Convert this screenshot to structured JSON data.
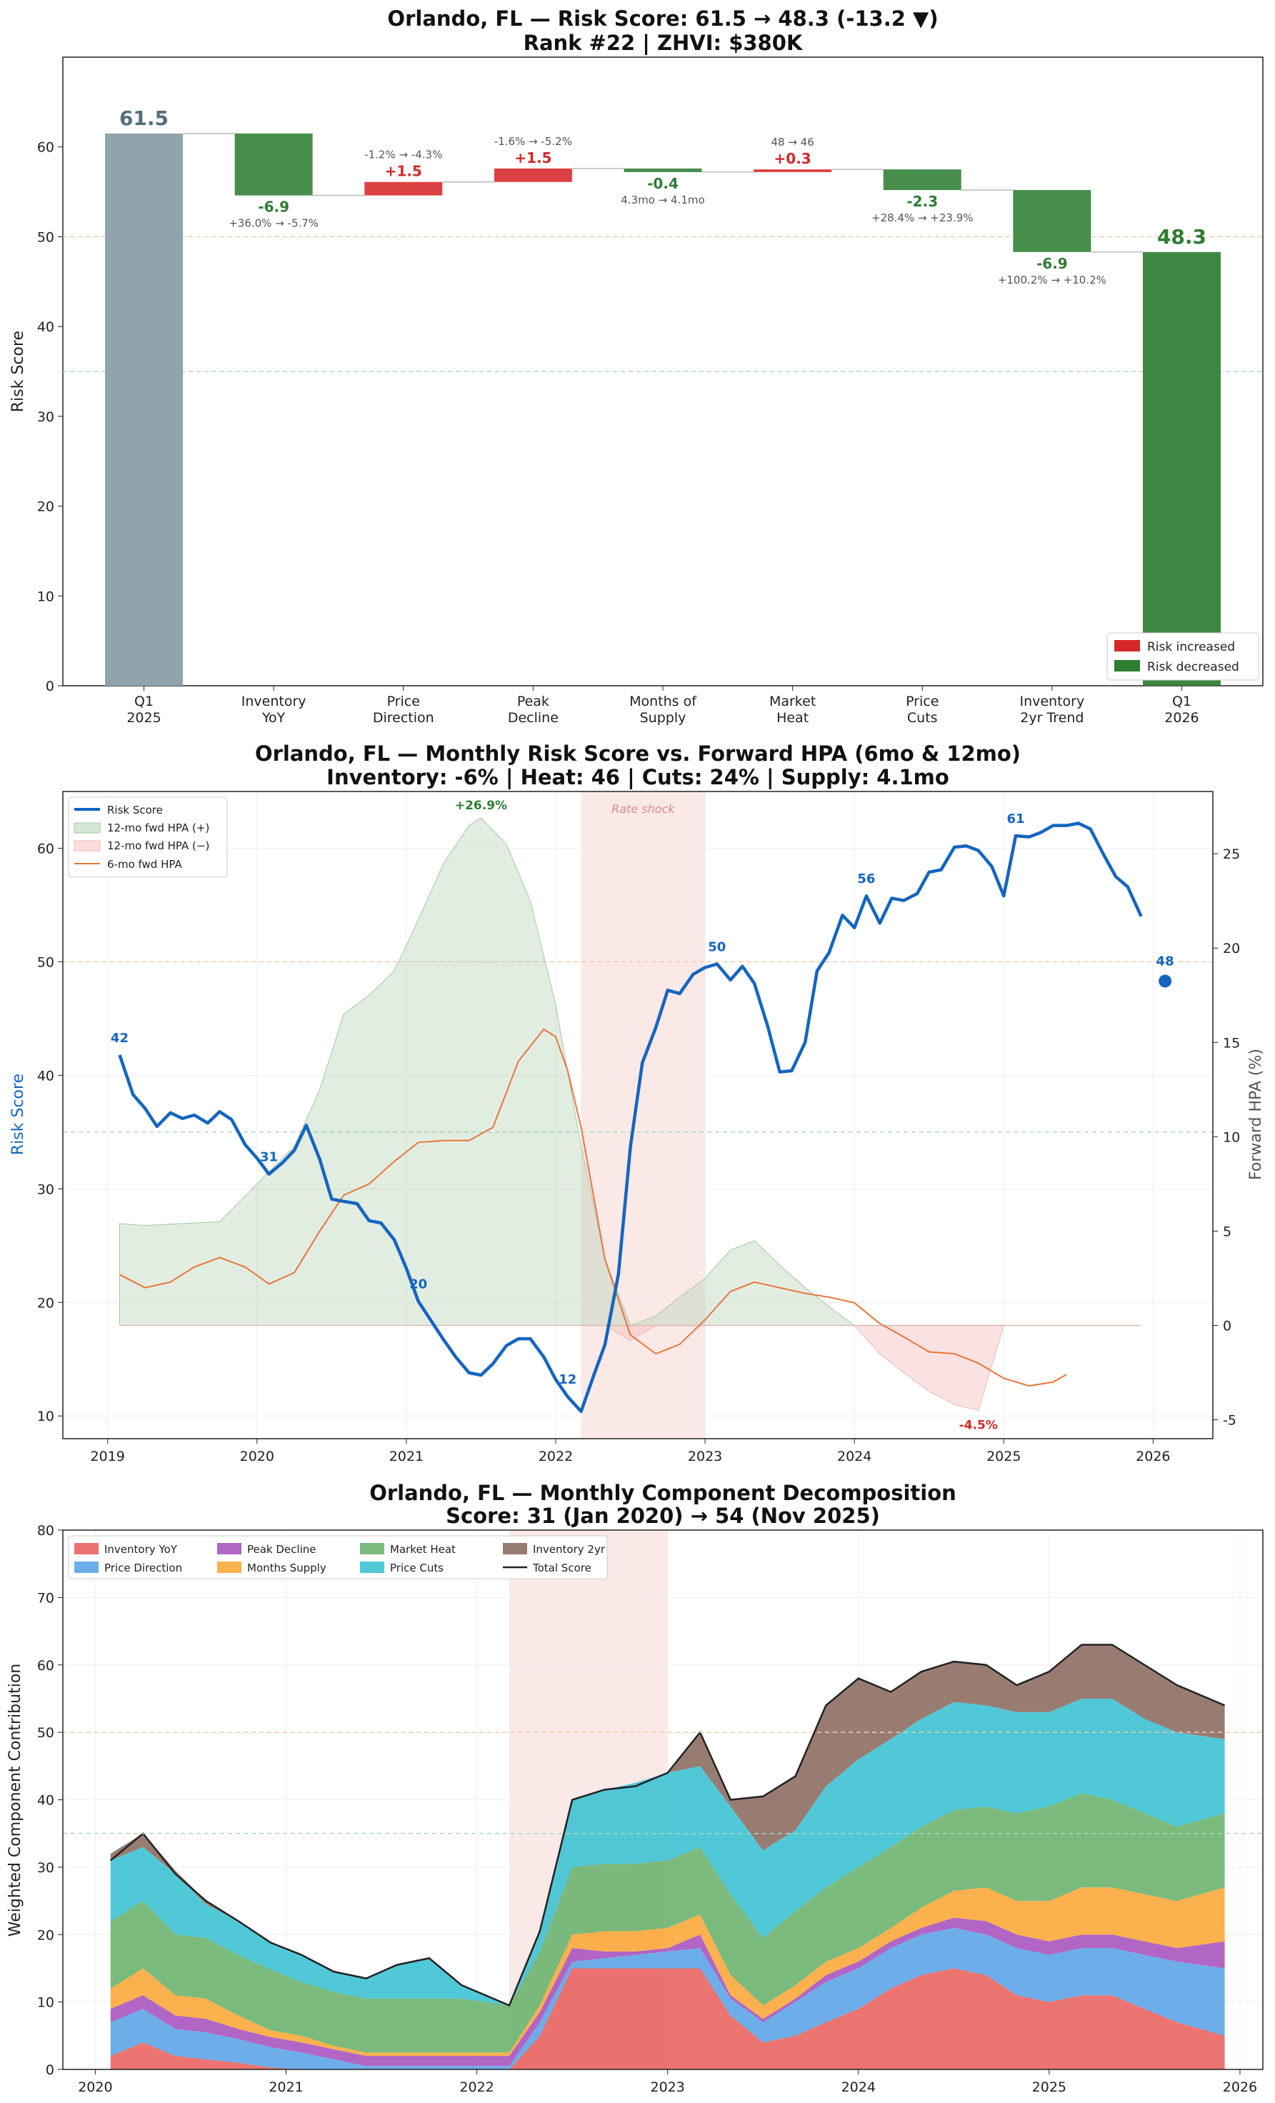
{
  "colors": {
    "increase": "#d62728",
    "decrease": "#2e7d32",
    "start_bar": "#90a4ae",
    "risk_line": "#1565c0",
    "hpa6": "#e8763a",
    "hpa_pos": "#a5c8a5",
    "hpa_neg": "#f4b6b6",
    "shock": "#f6d4d0",
    "ref_orange": "#f5cba7",
    "ref_green": "#a9d8c4"
  },
  "chart_data": [
    {
      "type": "bar",
      "subtype": "waterfall",
      "title": "Orlando, FL — Risk Score: 61.5 → 48.3 (-13.2 ▼)",
      "subtitle": "Rank #22  |  ZHVI: $380K",
      "ylabel": "Risk Score",
      "ylim": [
        0,
        70
      ],
      "yticks": [
        0,
        10,
        20,
        30,
        40,
        50,
        60
      ],
      "reference_lines": [
        50,
        35
      ],
      "legend": {
        "position": "bottom-right",
        "entries": [
          "Risk increased",
          "Risk decreased"
        ]
      },
      "start": {
        "label": [
          "Q1",
          "2025"
        ],
        "value": 61.5,
        "text": "61.5"
      },
      "end": {
        "label": [
          "Q1",
          "2026"
        ],
        "value": 48.3,
        "text": "48.3"
      },
      "steps": [
        {
          "label": [
            "Inventory",
            "YoY"
          ],
          "delta": -6.9,
          "text": "-6.9",
          "note": "+36.0% → -5.7%"
        },
        {
          "label": [
            "Price",
            "Direction"
          ],
          "delta": 1.5,
          "text": "+1.5",
          "note": "-1.2% → -4.3%"
        },
        {
          "label": [
            "Peak",
            "Decline"
          ],
          "delta": 1.5,
          "text": "+1.5",
          "note": "-1.6% → -5.2%"
        },
        {
          "label": [
            "Months of",
            "Supply"
          ],
          "delta": -0.4,
          "text": "-0.4",
          "note": "4.3mo → 4.1mo"
        },
        {
          "label": [
            "Market",
            "Heat"
          ],
          "delta": 0.3,
          "text": "+0.3",
          "note": "48 → 46"
        },
        {
          "label": [
            "Price",
            "Cuts"
          ],
          "delta": -2.3,
          "text": "-2.3",
          "note": "+28.4% → +23.9%"
        },
        {
          "label": [
            "Inventory",
            "2yr Trend"
          ],
          "delta": -6.9,
          "text": "-6.9",
          "note": "+100.2% → +10.2%"
        }
      ]
    },
    {
      "type": "line",
      "title": "Orlando, FL — Monthly Risk Score vs. Forward HPA (6mo & 12mo)",
      "subtitle": "Inventory: -6%  |  Heat: 46  |  Cuts: 24%  |  Supply: 4.1mo",
      "ylabel": "Risk Score",
      "y2label": "Forward HPA (%)",
      "xlim": [
        2018.7,
        2026.4
      ],
      "ylim": [
        8,
        65
      ],
      "y2lim": [
        -6,
        28.3
      ],
      "xticks": [
        2019,
        2020,
        2021,
        2022,
        2023,
        2024,
        2025,
        2026
      ],
      "yticks": [
        10,
        20,
        30,
        40,
        50,
        60
      ],
      "y2ticks": [
        -5,
        0,
        5,
        10,
        15,
        20,
        25
      ],
      "reference_lines": [
        50,
        35
      ],
      "shaded_region": {
        "x": [
          2022.17,
          2023.0
        ],
        "label": "Rate shock"
      },
      "legend": {
        "position": "top-left",
        "entries": [
          "Risk Score",
          "12-mo fwd HPA (+)",
          "12-mo fwd HPA (−)",
          "6-mo fwd HPA"
        ]
      },
      "series": [
        {
          "name": "Risk Score",
          "axis": "left",
          "x": [
            2019.08,
            2019.17,
            2019.25,
            2019.33,
            2019.42,
            2019.5,
            2019.58,
            2019.67,
            2019.75,
            2019.83,
            2019.92,
            2020.0,
            2020.08,
            2020.17,
            2020.25,
            2020.33,
            2020.42,
            2020.5,
            2020.58,
            2020.67,
            2020.75,
            2020.83,
            2020.92,
            2021.0,
            2021.08,
            2021.17,
            2021.25,
            2021.33,
            2021.42,
            2021.5,
            2021.58,
            2021.67,
            2021.75,
            2021.83,
            2021.92,
            2022.0,
            2022.08,
            2022.17,
            2022.25,
            2022.33,
            2022.42,
            2022.5,
            2022.58,
            2022.67,
            2022.75,
            2022.83,
            2022.92,
            2023.0,
            2023.08,
            2023.17,
            2023.25,
            2023.33,
            2023.42,
            2023.5,
            2023.58,
            2023.67,
            2023.75,
            2023.83,
            2023.92,
            2024.0,
            2024.08,
            2024.17,
            2024.25,
            2024.33,
            2024.42,
            2024.5,
            2024.58,
            2024.67,
            2024.75,
            2024.83,
            2024.92,
            2025.0,
            2025.08,
            2025.17,
            2025.25,
            2025.33,
            2025.42,
            2025.5,
            2025.58,
            2025.67,
            2025.75,
            2025.83,
            2025.92
          ],
          "y": [
            41.8,
            38.3,
            37.1,
            35.5,
            36.7,
            36.2,
            36.5,
            35.8,
            36.8,
            36.1,
            33.9,
            32.7,
            31.3,
            32.3,
            33.4,
            35.6,
            32.6,
            29.1,
            28.9,
            28.7,
            27.2,
            27.0,
            25.5,
            23.0,
            20.1,
            18.3,
            16.7,
            15.2,
            13.8,
            13.6,
            14.6,
            16.2,
            16.8,
            16.8,
            15.2,
            13.2,
            11.7,
            10.4,
            13.4,
            16.3,
            22.5,
            33.7,
            41.1,
            44.2,
            47.5,
            47.2,
            48.9,
            49.5,
            49.8,
            48.4,
            49.6,
            48.1,
            44.3,
            40.3,
            40.4,
            42.9,
            49.2,
            50.8,
            54.1,
            53.0,
            55.8,
            53.4,
            55.6,
            55.4,
            56.0,
            57.9,
            58.1,
            60.1,
            60.2,
            59.8,
            58.4,
            55.8,
            61.1,
            61.0,
            61.4,
            62.0,
            62.0,
            62.2,
            61.7,
            59.4,
            57.5,
            56.6,
            54.0
          ],
          "labels": [
            {
              "x": 2019.08,
              "y": 41.8,
              "text": "42"
            },
            {
              "x": 2020.08,
              "y": 31.3,
              "text": "31"
            },
            {
              "x": 2021.08,
              "y": 20.1,
              "text": "20"
            },
            {
              "x": 2022.08,
              "y": 11.7,
              "text": "12"
            },
            {
              "x": 2023.08,
              "y": 49.8,
              "text": "50"
            },
            {
              "x": 2024.08,
              "y": 55.8,
              "text": "56"
            },
            {
              "x": 2025.08,
              "y": 61.1,
              "text": "61"
            }
          ],
          "final_point": {
            "x": 2026.08,
            "y": 48.3,
            "text": "48"
          }
        },
        {
          "name": "12-mo fwd HPA",
          "axis": "right",
          "x": [
            2019.08,
            2019.25,
            2019.5,
            2019.75,
            2020.0,
            2020.25,
            2020.42,
            2020.58,
            2020.75,
            2020.92,
            2021.08,
            2021.25,
            2021.42,
            2021.5,
            2021.67,
            2021.83,
            2022.0,
            2022.17,
            2022.33,
            2022.5,
            2022.67,
            2022.83,
            2023.0,
            2023.17,
            2023.33,
            2023.5,
            2023.67,
            2023.83,
            2024.0,
            2024.17,
            2024.33,
            2024.5,
            2024.67,
            2024.83,
            2025.0,
            2025.08,
            2025.5,
            2025.92
          ],
          "y": [
            5.4,
            5.3,
            5.4,
            5.5,
            7.5,
            9.5,
            12.5,
            16.5,
            17.5,
            18.8,
            21.5,
            24.5,
            26.5,
            26.9,
            25.5,
            22.5,
            17.0,
            9.5,
            3.5,
            -0.8,
            0.5,
            1.5,
            2.5,
            4.0,
            4.5,
            3.2,
            2.0,
            1.0,
            0.0,
            -1.5,
            -2.5,
            -3.5,
            -4.2,
            -4.5,
            0.0,
            0.0,
            0.0,
            0.0
          ],
          "labels": [
            {
              "x": 2021.5,
              "y": 26.9,
              "text": "+26.9%"
            },
            {
              "x": 2024.83,
              "y": -4.5,
              "text": "-4.5%"
            }
          ]
        },
        {
          "name": "6-mo fwd HPA",
          "axis": "right",
          "x": [
            2019.08,
            2019.25,
            2019.42,
            2019.58,
            2019.75,
            2019.92,
            2020.08,
            2020.25,
            2020.42,
            2020.58,
            2020.75,
            2020.92,
            2021.08,
            2021.25,
            2021.42,
            2021.58,
            2021.75,
            2021.92,
            2022.0,
            2022.08,
            2022.17,
            2022.33,
            2022.5,
            2022.67,
            2022.83,
            2023.0,
            2023.17,
            2023.33,
            2023.5,
            2023.67,
            2023.83,
            2024.0,
            2024.17,
            2024.33,
            2024.5,
            2024.67,
            2024.83,
            2025.0,
            2025.17,
            2025.33,
            2025.42
          ],
          "y": [
            2.7,
            2.0,
            2.3,
            3.1,
            3.6,
            3.1,
            2.2,
            2.8,
            5.0,
            6.9,
            7.5,
            8.7,
            9.7,
            9.8,
            9.8,
            10.5,
            14.0,
            15.7,
            15.3,
            13.5,
            10.5,
            3.5,
            -0.5,
            -1.5,
            -1.0,
            0.3,
            1.8,
            2.3,
            2.0,
            1.7,
            1.5,
            1.2,
            0.1,
            -0.6,
            -1.4,
            -1.5,
            -2.0,
            -2.8,
            -3.2,
            -3.0,
            -2.6
          ]
        }
      ]
    },
    {
      "type": "area",
      "stacked": true,
      "title": "Orlando, FL — Monthly Component Decomposition",
      "subtitle": "Score: 31 (Jan 2020) → 54 (Nov 2025)",
      "ylabel": "Weighted Component Contribution",
      "xlim": [
        2019.83,
        2026.12
      ],
      "ylim": [
        0,
        80
      ],
      "xticks": [
        2020,
        2021,
        2022,
        2023,
        2024,
        2025,
        2026
      ],
      "yticks": [
        0,
        10,
        20,
        30,
        40,
        50,
        60,
        70,
        80
      ],
      "reference_lines": [
        50,
        35
      ],
      "shaded_region": {
        "x": [
          2022.17,
          2023.0
        ]
      },
      "legend": {
        "position": "top-left",
        "entries": [
          "Inventory YoY",
          "Price Direction",
          "Peak Decline",
          "Months Supply",
          "Market Heat",
          "Price Cuts",
          "Inventory 2yr",
          "Total Score"
        ]
      },
      "x": [
        2020.08,
        2020.25,
        2020.42,
        2020.58,
        2020.75,
        2020.92,
        2021.08,
        2021.25,
        2021.42,
        2021.58,
        2021.75,
        2021.92,
        2022.17,
        2022.33,
        2022.5,
        2022.67,
        2022.83,
        2023.0,
        2023.17,
        2023.33,
        2023.5,
        2023.67,
        2023.83,
        2024.0,
        2024.17,
        2024.33,
        2024.5,
        2024.67,
        2024.83,
        2025.0,
        2025.17,
        2025.33,
        2025.5,
        2025.67,
        2025.92
      ],
      "series": [
        {
          "name": "Inventory YoY",
          "color": "#e96461",
          "values": [
            2,
            4,
            2,
            1.5,
            1,
            0.3,
            0,
            0,
            0,
            0,
            0,
            0,
            0,
            5,
            15,
            15,
            15,
            15,
            15,
            8,
            4,
            5,
            7,
            9,
            12,
            14,
            15,
            14,
            11,
            10,
            11,
            11,
            9,
            7,
            5
          ]
        },
        {
          "name": "Price Direction",
          "color": "#5da5e8",
          "values": [
            5,
            5,
            4,
            4,
            3.5,
            3,
            2.5,
            1.5,
            0.5,
            0.5,
            0.5,
            0.5,
            0.5,
            2,
            1,
            1.5,
            2,
            2.5,
            3,
            2.5,
            3,
            5,
            6,
            6,
            6,
            6,
            6,
            6,
            7,
            7,
            7,
            7,
            8,
            9,
            10
          ]
        },
        {
          "name": "Peak Decline",
          "color": "#a855bf",
          "values": [
            2,
            2,
            2,
            2,
            1.5,
            1.5,
            1.5,
            1.5,
            1.5,
            1.5,
            1.5,
            1.5,
            1.5,
            1.5,
            2,
            1,
            0.5,
            0.5,
            2,
            0.5,
            0.5,
            0.5,
            1,
            1,
            1,
            1,
            1.5,
            2,
            2,
            2,
            2,
            2,
            2,
            2,
            4
          ]
        },
        {
          "name": "Months Supply",
          "color": "#f9a93b",
          "values": [
            3,
            4,
            3,
            3,
            2,
            1,
            1,
            0.5,
            0.5,
            0.5,
            0.5,
            0.5,
            0.5,
            1,
            2,
            3,
            3,
            3,
            3,
            3,
            2,
            2,
            2,
            2,
            2,
            3,
            4,
            5,
            5,
            6,
            7,
            7,
            7,
            7,
            8
          ]
        },
        {
          "name": "Market Heat",
          "color": "#6bb36f",
          "values": [
            10,
            10,
            9,
            9,
            9,
            9,
            8,
            8,
            8,
            8,
            8,
            8,
            7,
            8,
            10,
            10,
            10,
            10,
            10,
            12,
            10,
            11,
            11,
            12,
            12,
            12,
            12,
            12,
            13,
            14,
            14,
            13,
            12,
            11,
            11
          ]
        },
        {
          "name": "Price Cuts",
          "color": "#3ec2d3",
          "values": [
            9,
            8,
            9,
            5,
            5,
            4,
            4,
            3,
            3,
            5,
            6,
            2,
            0,
            3,
            10,
            11,
            12,
            13,
            12,
            13,
            13,
            12,
            15,
            16,
            16,
            16,
            16,
            15,
            15,
            14,
            14,
            15,
            14,
            14,
            11
          ]
        },
        {
          "name": "Inventory 2yr",
          "color": "#8d6e63",
          "values": [
            1,
            2,
            0.5,
            0.5,
            0,
            0,
            0,
            0,
            0,
            0,
            0,
            0,
            0,
            0,
            0,
            0,
            0,
            0,
            5,
            1,
            8,
            8,
            12,
            12,
            7,
            7,
            6,
            6,
            4,
            6,
            8,
            8,
            8,
            7,
            5
          ]
        }
      ],
      "total": {
        "name": "Total Score",
        "color": "#222222",
        "values": [
          31,
          35,
          29,
          25,
          22,
          18.8,
          17,
          14.5,
          13.5,
          15.5,
          16.5,
          12.5,
          9.5,
          20.5,
          40,
          41.5,
          42,
          44,
          50,
          40,
          40.5,
          43.5,
          54,
          58,
          56,
          59,
          60.5,
          60,
          57,
          59,
          63,
          63,
          60,
          57,
          54
        ]
      }
    }
  ]
}
